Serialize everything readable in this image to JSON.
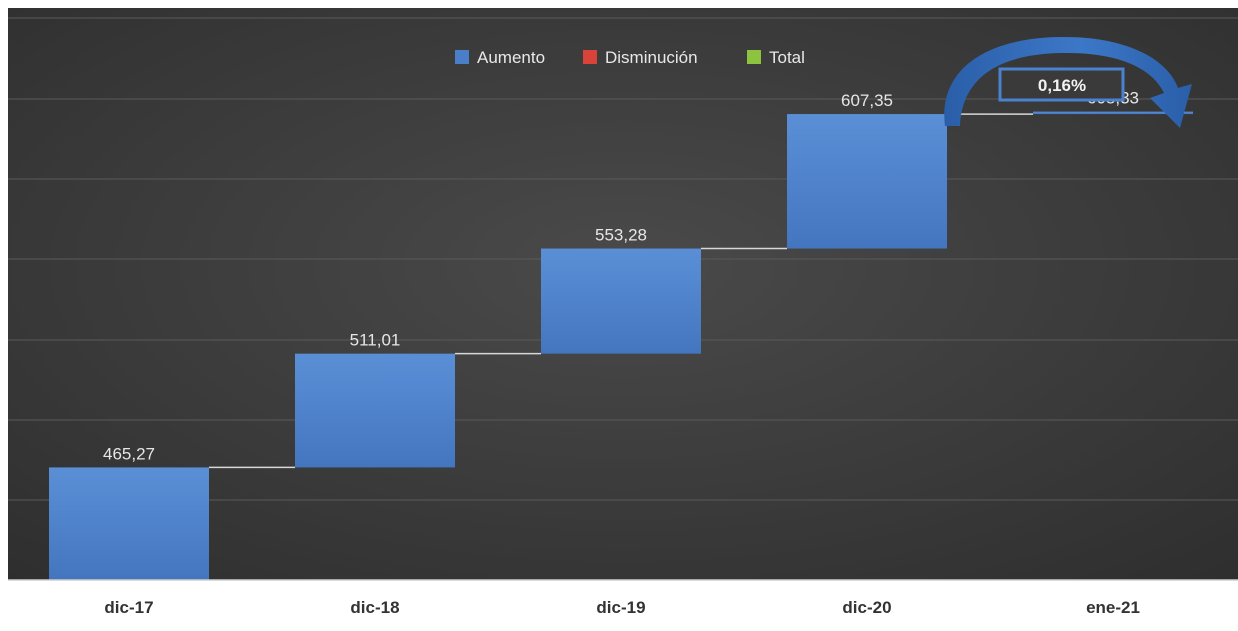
{
  "chart_data": {
    "type": "bar",
    "subtype": "waterfall",
    "categories": [
      "dic-17",
      "dic-18",
      "dic-19",
      "dic-20",
      "ene-21"
    ],
    "values": [
      465.27,
      511.01,
      553.28,
      607.35,
      608.33
    ],
    "value_labels": [
      "465,27",
      "511,01",
      "553,28",
      "607,35",
      "608,33"
    ],
    "legend": {
      "placement": "top-center",
      "entries": [
        {
          "key": "increase",
          "label": "Aumento",
          "color": "#4a7ec8"
        },
        {
          "key": "decrease",
          "label": "Disminución",
          "color": "#d9433a"
        },
        {
          "key": "total",
          "label": "Total",
          "color": "#8cc43f"
        }
      ]
    },
    "annotation": {
      "text": "0,16%",
      "from": "dic-20",
      "to": "ene-21"
    },
    "title": "",
    "xlabel": "",
    "ylabel": "",
    "grid": true,
    "ylim": [
      420,
      650
    ],
    "colors": {
      "background": "#3f3f3f",
      "bar": "#4a7ec8",
      "gridline": "#5a5a5a",
      "connector": "#d8d8d8",
      "axis": "#cfcfcf",
      "arrow": "#2e67b2",
      "callout_border": "#4a82d0"
    }
  }
}
